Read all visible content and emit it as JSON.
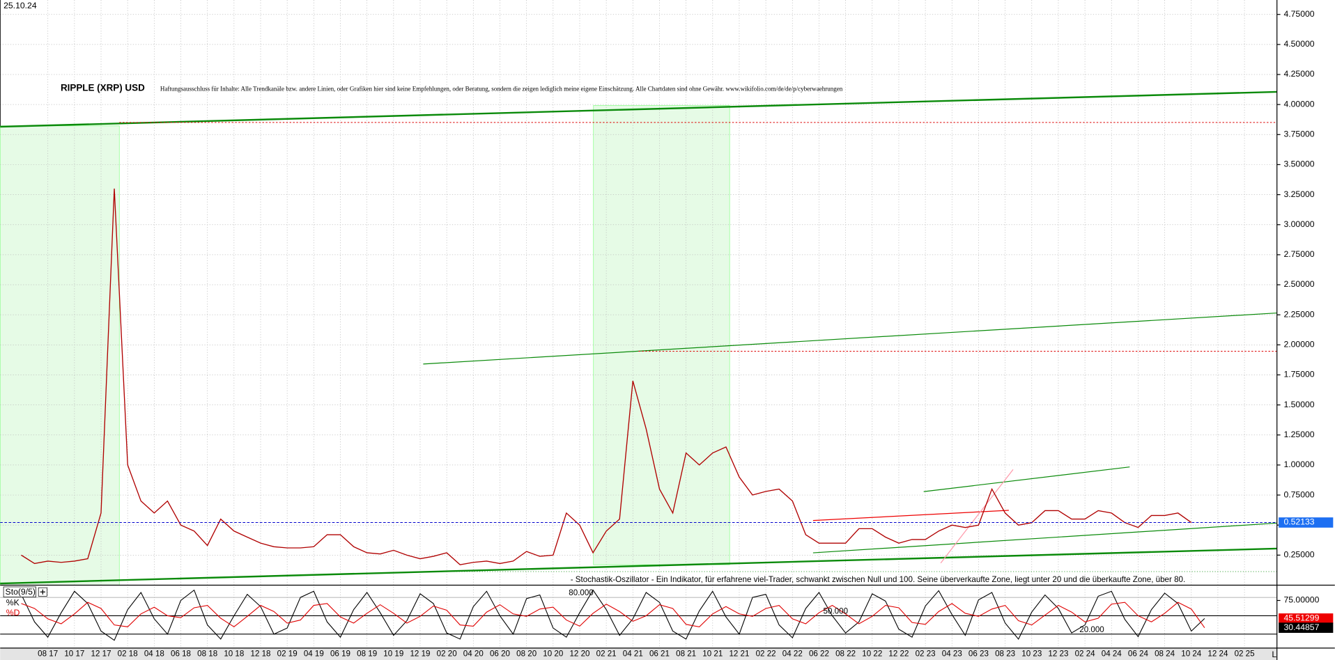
{
  "chart_data": {
    "type": "line",
    "title": "RIPPLE (XRP) USD",
    "date": "25.10.24",
    "disclaimer": "Haftungsausschluss für Inhalte: Alle Trendkanäle bzw. andere Linien, oder Grafiken hier sind keine Empfehlungen, oder Beratung, sondern die zeigen lediglich meine eigene Einschätzung. Alle Chartdaten sind ohne Gewähr. www.wikifolio.com/de/de/p/cyberwaehrungen",
    "corner_label": "L",
    "categories": [
      null,
      null,
      "08 17",
      null,
      "10 17",
      null,
      "12 17",
      null,
      "02 18",
      null,
      "04 18",
      null,
      "06 18",
      null,
      "08 18",
      null,
      "10 18",
      null,
      "12 18",
      null,
      "02 19",
      null,
      "04 19",
      null,
      "06 19",
      null,
      "08 19",
      null,
      "10 19",
      null,
      "12 19",
      null,
      "02 20",
      null,
      "04 20",
      null,
      "06 20",
      null,
      "08 20",
      null,
      "10 20",
      null,
      "12 20",
      null,
      "02 21",
      null,
      "04 21",
      null,
      "06 21",
      null,
      "08 21",
      null,
      "10 21",
      null,
      "12 21",
      null,
      "02 22",
      null,
      "04 22",
      null,
      "06 22",
      null,
      "08 22",
      null,
      "10 22",
      null,
      "12 22",
      null,
      "02 23",
      null,
      "04 23",
      null,
      "06 23",
      null,
      "08 23",
      null,
      "10 23",
      null,
      "12 23",
      null,
      "02 24",
      null,
      "04 24",
      null,
      "06 24",
      null,
      "08 24",
      null,
      "10 24",
      null,
      "12 24",
      null,
      "02 25"
    ],
    "series": [
      {
        "name": "XRP",
        "color": "#b00000",
        "values": [
          0.25,
          0.18,
          0.2,
          0.19,
          0.2,
          0.22,
          0.6,
          3.3,
          1.0,
          0.7,
          0.6,
          0.7,
          0.5,
          0.45,
          0.33,
          0.55,
          0.45,
          0.4,
          0.35,
          0.32,
          0.31,
          0.31,
          0.32,
          0.42,
          0.42,
          0.32,
          0.27,
          0.26,
          0.29,
          0.25,
          0.22,
          0.24,
          0.27,
          0.17,
          0.19,
          0.2,
          0.18,
          0.2,
          0.28,
          0.24,
          0.25,
          0.6,
          0.5,
          0.27,
          0.45,
          0.55,
          1.7,
          1.3,
          0.8,
          0.6,
          1.1,
          1.0,
          1.1,
          1.15,
          0.9,
          0.75,
          0.78,
          0.8,
          0.7,
          0.42,
          0.35,
          0.35,
          0.35,
          0.47,
          0.47,
          0.4,
          0.35,
          0.38,
          0.38,
          0.45,
          0.5,
          0.48,
          0.5,
          0.8,
          0.6,
          0.5,
          0.52,
          0.62,
          0.62,
          0.55,
          0.55,
          0.62,
          0.6,
          0.52,
          0.48,
          0.58,
          0.58,
          0.6,
          0.52133,
          null,
          null,
          null,
          null
        ]
      }
    ],
    "ylim": [
      0,
      4.87
    ],
    "yticks": [
      {
        "value": 0.25,
        "label": "0.25000"
      },
      {
        "value": 0.5,
        "label": "0.50000"
      },
      {
        "value": 0.75,
        "label": "0.75000"
      },
      {
        "value": 1.0,
        "label": "1.00000"
      },
      {
        "value": 1.25,
        "label": "1.25000"
      },
      {
        "value": 1.5,
        "label": "1.50000"
      },
      {
        "value": 1.75,
        "label": "1.75000"
      },
      {
        "value": 2.0,
        "label": "2.00000"
      },
      {
        "value": 2.25,
        "label": "2.25000"
      },
      {
        "value": 2.5,
        "label": "2.50000"
      },
      {
        "value": 2.75,
        "label": "2.75000"
      },
      {
        "value": 3.0,
        "label": "3.00000"
      },
      {
        "value": 3.25,
        "label": "3.25000"
      },
      {
        "value": 3.5,
        "label": "3.50000"
      },
      {
        "value": 3.75,
        "label": "3.75000"
      },
      {
        "value": 4.0,
        "label": "4.00000"
      },
      {
        "value": 4.25,
        "label": "4.25000"
      },
      {
        "value": 4.5,
        "label": "4.50000"
      },
      {
        "value": 4.75,
        "label": "4.75000"
      }
    ],
    "grid": true,
    "indicator": {
      "name": "Sto(9/5)",
      "description": "- Stochastik-Oszillator - Ein Indikator, für erfahrene viel-Trader, schwankt zwischen Null und 100. Seine überverkaufte Zone, liegt unter 20 und die überkaufte Zone, über 80.",
      "ylim": [
        0,
        100
      ],
      "yticks": [
        {
          "value": 75,
          "label": "75.00000"
        }
      ],
      "levels": [
        {
          "value": 80,
          "label": "80.000"
        },
        {
          "value": 50,
          "label": "50.000"
        },
        {
          "value": 20,
          "label": "20.000"
        }
      ],
      "series": [
        {
          "name": "%K",
          "color": "#000000",
          "values": [
            85,
            40,
            15,
            55,
            90,
            70,
            25,
            10,
            60,
            88,
            45,
            20,
            75,
            92,
            35,
            12,
            50,
            85,
            65,
            20,
            30,
            80,
            90,
            40,
            15,
            60,
            88,
            55,
            18,
            42,
            86,
            70,
            22,
            12,
            65,
            90,
            50,
            20,
            78,
            84,
            30,
            15,
            55,
            92,
            60,
            18,
            45,
            88,
            72,
            25,
            12,
            58,
            90,
            48,
            20,
            80,
            85,
            35,
            14,
            62,
            88,
            50,
            22,
            40,
            86,
            74,
            28,
            15,
            66,
            91,
            52,
            18,
            76,
            88,
            38,
            12,
            56,
            84,
            62,
            22,
            35,
            82,
            90,
            44,
            16,
            60,
            87,
            70,
            25,
            45.51299,
            null,
            null,
            null
          ]
        },
        {
          "name": "%D",
          "color": "#e00000",
          "values": [
            70,
            62,
            45,
            37,
            53,
            72,
            62,
            35,
            32,
            53,
            64,
            50,
            47,
            63,
            67,
            46,
            32,
            49,
            67,
            57,
            38,
            43,
            67,
            70,
            48,
            38,
            54,
            68,
            54,
            38,
            49,
            66,
            59,
            35,
            33,
            56,
            68,
            53,
            49,
            61,
            64,
            43,
            33,
            54,
            69,
            57,
            41,
            50,
            68,
            62,
            36,
            32,
            53,
            65,
            53,
            49,
            62,
            67,
            45,
            37,
            55,
            67,
            53,
            37,
            49,
            67,
            63,
            39,
            36,
            57,
            70,
            54,
            49,
            61,
            67,
            42,
            35,
            51,
            67,
            56,
            40,
            46,
            69,
            72,
            50,
            40,
            54,
            72,
            61,
            30.44857,
            null,
            null,
            null
          ]
        }
      ]
    }
  }
}
